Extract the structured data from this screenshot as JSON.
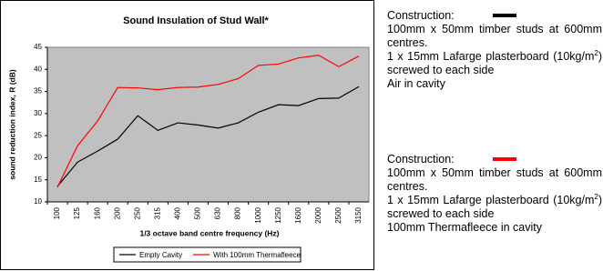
{
  "chart_data": {
    "type": "line",
    "title": "Sound Insulation of Stud Wall*",
    "y_label": "sound reduction index, R (dB)",
    "x_label": "1/3 octave band centre frequency (Hz)",
    "categories": [
      "100",
      "125",
      "160",
      "200",
      "250",
      "315",
      "400",
      "500",
      "630",
      "800",
      "1000",
      "1250",
      "1600",
      "2000",
      "2500",
      "3150"
    ],
    "series": [
      {
        "name": "Empty Cavity",
        "color": "#000000",
        "values": [
          13.5,
          19,
          21.5,
          24.2,
          29.5,
          26.2,
          27.9,
          27.4,
          26.7,
          27.9,
          30.3,
          32,
          31.8,
          33.4,
          33.5,
          36.1
        ]
      },
      {
        "name": "With 100mm Thermafleece",
        "color": "#ff0000",
        "values": [
          13.3,
          22.7,
          28.3,
          35.9,
          35.8,
          35.4,
          35.9,
          36,
          36.6,
          37.9,
          40.9,
          41.2,
          42.6,
          43.2,
          40.6,
          43
        ]
      }
    ],
    "ylim": [
      10,
      45
    ],
    "yticks": [
      10,
      15,
      20,
      25,
      30,
      35,
      40,
      45
    ],
    "grid": false,
    "plot_background": "#c0c0c0",
    "legend": "bottom"
  },
  "side_panel": {
    "blocks": [
      {
        "heading": "Construction:",
        "paragraphs": [
          [
            "100mm x 50mm timber studs at 600mm centres."
          ],
          [
            "1 x 15mm Lafarge plasterboard (10kg/m",
            "2",
            ") screwed to each side"
          ],
          [
            "Air in cavity"
          ]
        ]
      },
      {
        "heading": "Construction:",
        "paragraphs": [
          [
            "100mm x 50mm timber studs at 600mm centres."
          ],
          [
            "1 x 15mm Lafarge plasterboard (10kg/m",
            "2",
            ") screwed to each side"
          ],
          [
            "100mm Thermafleece in cavity"
          ]
        ]
      }
    ]
  }
}
